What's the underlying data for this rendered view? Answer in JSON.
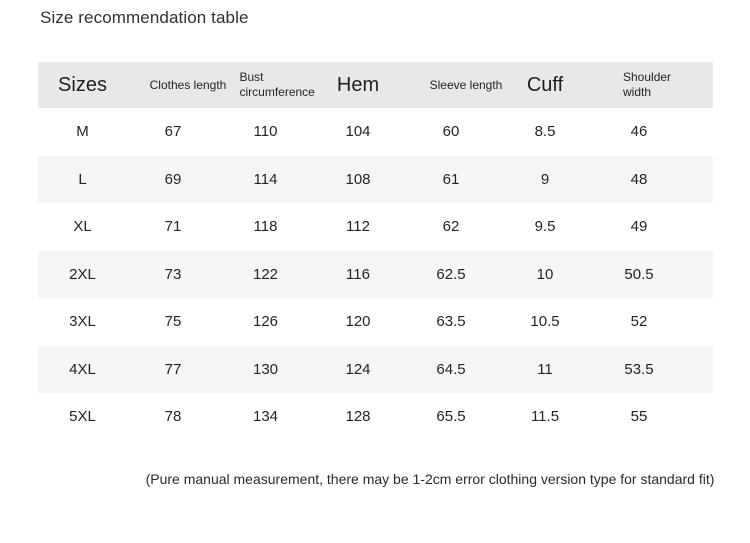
{
  "title": "Size recommendation table",
  "chart_data": {
    "type": "table",
    "title": "Size recommendation table",
    "columns": [
      "Sizes",
      "Clothes length",
      "Bust circumference",
      "Hem",
      "Sleeve length",
      "Cuff",
      "Shoulder width"
    ],
    "rows": [
      [
        "M",
        "67",
        "110",
        "104",
        "60",
        "8.5",
        "46"
      ],
      [
        "L",
        "69",
        "114",
        "108",
        "61",
        "9",
        "48"
      ],
      [
        "XL",
        "71",
        "118",
        "112",
        "62",
        "9.5",
        "49"
      ],
      [
        "2XL",
        "73",
        "122",
        "116",
        "62.5",
        "10",
        "50.5"
      ],
      [
        "3XL",
        "75",
        "126",
        "120",
        "63.5",
        "10.5",
        "52"
      ],
      [
        "4XL",
        "77",
        "130",
        "124",
        "64.5",
        "11",
        "53.5"
      ],
      [
        "5XL",
        "78",
        "134",
        "128",
        "65.5",
        "11.5",
        "55"
      ]
    ],
    "footnote": "(Pure manual measurement, there may be 1-2cm error clothing version type for standard fit)"
  },
  "colors": {
    "page_bg": "#ffffff",
    "header_bg": "#e8e8e8",
    "stripe_bg": "#f5f5f5",
    "text": "#222222"
  }
}
